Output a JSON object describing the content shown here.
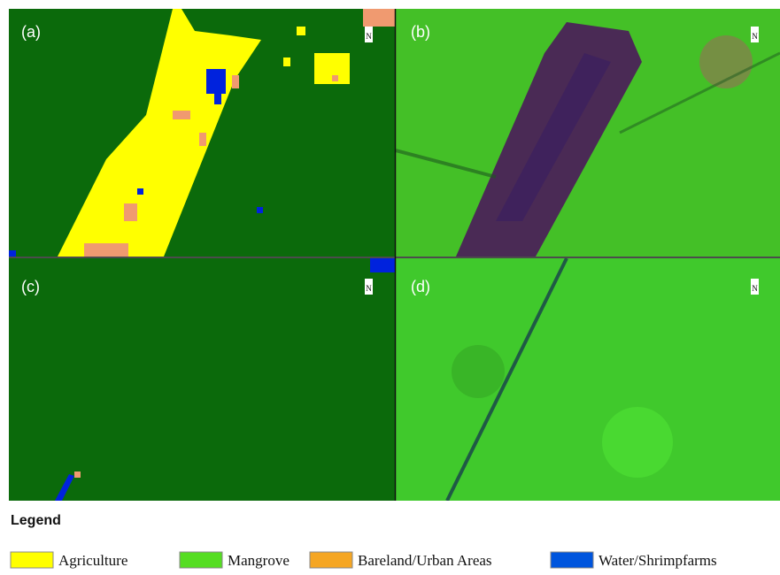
{
  "panels": [
    {
      "label": "(a)",
      "north": "N"
    },
    {
      "label": "(b)",
      "north": "N"
    },
    {
      "label": "(c)",
      "north": "N"
    },
    {
      "label": "(d)",
      "north": "N"
    }
  ],
  "legend": {
    "title": "Legend",
    "items": [
      "Agriculture",
      "Mangrove",
      "Bareland/Urban Areas",
      "Water/Shrimpfarms"
    ]
  }
}
